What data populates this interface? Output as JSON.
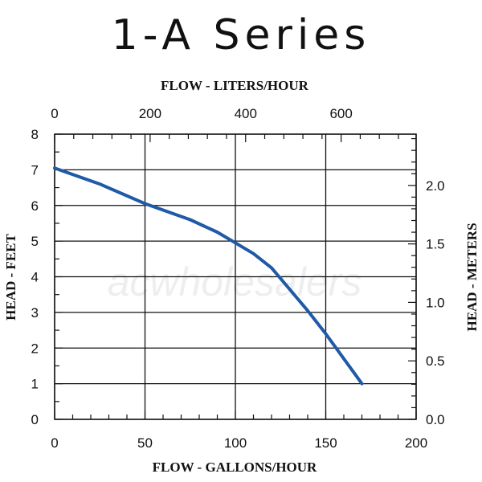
{
  "title": "1-A Series",
  "chart_data": {
    "type": "line",
    "xlabel": "FLOW - GALLONS/HOUR",
    "ylabel": "HEAD - FEET",
    "x2label": "FLOW - LITERS/HOUR",
    "y2label": "HEAD - METERS",
    "xlim": [
      0,
      200
    ],
    "ylim": [
      0,
      8
    ],
    "x2lim": [
      0,
      757.08
    ],
    "y2lim": [
      0,
      2.4384
    ],
    "xticks": [
      0,
      50,
      100,
      150,
      200
    ],
    "yticks": [
      0,
      1,
      2,
      3,
      4,
      5,
      6,
      7,
      8
    ],
    "x2ticks": [
      0,
      200,
      400,
      600
    ],
    "y2ticks": [
      0.0,
      0.5,
      1.0,
      1.5,
      2.0
    ],
    "xtick_labels": [
      "0",
      "50",
      "100",
      "150",
      "200"
    ],
    "ytick_labels": [
      "0",
      "1",
      "2",
      "3",
      "4",
      "5",
      "6",
      "7",
      "8"
    ],
    "x2tick_labels": [
      "0",
      "200",
      "400",
      "600"
    ],
    "y2tick_labels": [
      "0.0",
      "0.5",
      "1.0",
      "1.5",
      "2.0"
    ],
    "grid": true,
    "series": [
      {
        "color": "#1f5aa6",
        "x": [
          0,
          25,
          50,
          75,
          90,
          100,
          110,
          120,
          130,
          140,
          150,
          160,
          170
        ],
        "y": [
          7.05,
          6.6,
          6.05,
          5.6,
          5.25,
          4.95,
          4.65,
          4.25,
          3.65,
          3.05,
          2.4,
          1.7,
          1.0
        ]
      }
    ],
    "watermark": "acwholesalers"
  }
}
